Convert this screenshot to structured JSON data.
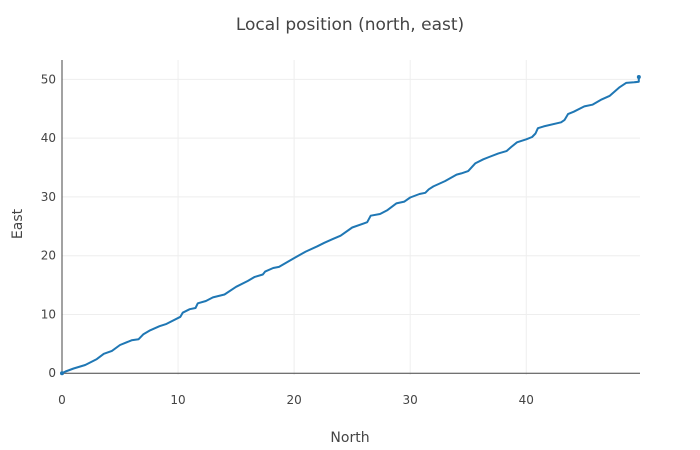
{
  "chart_data": {
    "type": "line",
    "title": "Local position (north, east)",
    "xlabel": "North",
    "ylabel": "East",
    "xlim": [
      0,
      49.8
    ],
    "ylim": [
      -0.3,
      53.3
    ],
    "xticks": [
      0,
      10,
      20,
      30,
      40
    ],
    "yticks": [
      0,
      10,
      20,
      30,
      40,
      50
    ],
    "grid": true,
    "legend": "none",
    "colors": {
      "line": "#1f77b4",
      "text": "#444444",
      "grid": "#eeeeee",
      "zeroline": "#444444"
    },
    "series": [
      {
        "x": [
          0,
          0.3,
          1,
          2,
          3,
          3.6,
          4.3,
          5,
          6,
          6.6,
          7,
          7.6,
          8.4,
          9,
          10.2,
          10.4,
          11,
          11.5,
          11.7,
          12.4,
          13,
          14,
          15,
          16,
          16.6,
          17.3,
          17.5,
          18.2,
          18.7,
          20,
          21,
          22,
          22.6,
          23.3,
          24,
          25,
          26,
          26.3,
          26.6,
          27.4,
          28,
          28.8,
          29.5,
          30,
          30.8,
          31.3,
          31.6,
          32,
          33,
          34,
          34.4,
          35,
          35.6,
          36.3,
          36.8,
          37.6,
          38.3,
          38.7,
          39.2,
          40,
          40.5,
          40.8,
          41,
          41.5,
          43,
          43.3,
          43.6,
          44.1,
          45,
          45.7,
          46.5,
          47.2,
          48,
          48.6,
          49.3,
          49.7,
          49.7
        ],
        "y": [
          0,
          0.3,
          0.8,
          1.4,
          2.4,
          3.3,
          3.8,
          4.8,
          5.6,
          5.8,
          6.6,
          7.3,
          8,
          8.4,
          9.6,
          10.3,
          10.9,
          11.1,
          11.9,
          12.3,
          12.9,
          13.4,
          14.7,
          15.7,
          16.4,
          16.8,
          17.3,
          17.9,
          18.1,
          19.6,
          20.7,
          21.6,
          22.2,
          22.8,
          23.4,
          24.8,
          25.5,
          25.7,
          26.8,
          27.1,
          27.7,
          28.9,
          29.2,
          29.9,
          30.5,
          30.7,
          31.3,
          31.8,
          32.7,
          33.8,
          34,
          34.4,
          35.7,
          36.4,
          36.8,
          37.4,
          37.8,
          38.5,
          39.3,
          39.8,
          40.2,
          40.8,
          41.7,
          42,
          42.7,
          43.1,
          44.1,
          44.5,
          45.4,
          45.7,
          46.6,
          47.2,
          48.6,
          49.4,
          49.5,
          49.6,
          50.4
        ]
      }
    ]
  }
}
